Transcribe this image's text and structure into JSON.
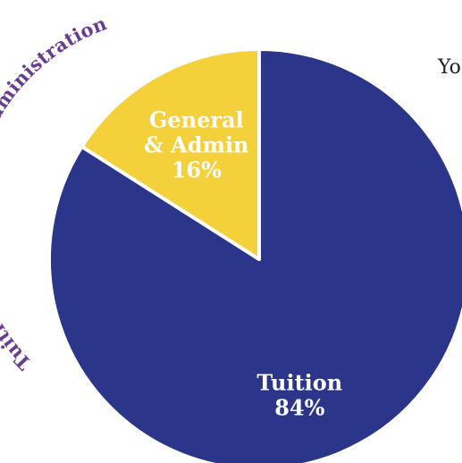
{
  "chart_data": {
    "type": "pie",
    "title": "Tuition & General and Administration",
    "slices": [
      {
        "name": "Tuition",
        "value": 84,
        "value_label": "84%",
        "color": "#2b3589",
        "label_lines": [
          "Tuition"
        ]
      },
      {
        "name": "General & Admin",
        "value": 16,
        "value_label": "16%",
        "color": "#f4d03a",
        "label_lines": [
          "General",
          "& Admin"
        ]
      }
    ],
    "label_colors": {
      "Tuition": "#ffffff",
      "General & Admin": "#ffffff"
    },
    "title_color": "#6a3c8f",
    "slice_border_color": "#ffffff",
    "legend": "none"
  },
  "partial_text": "Yo"
}
